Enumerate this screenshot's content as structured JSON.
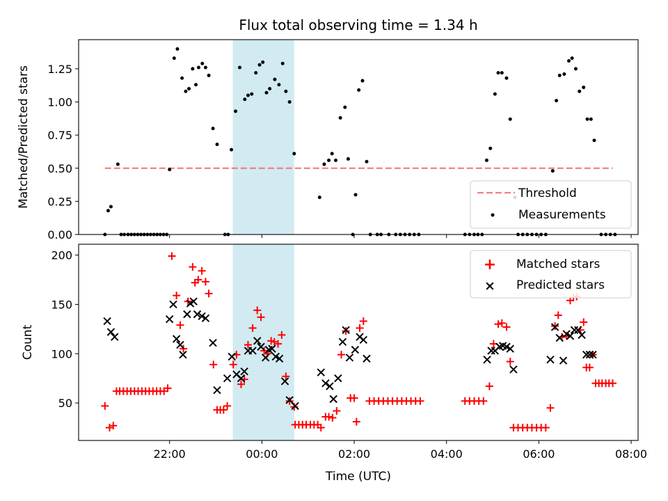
{
  "title": "Flux total observing time = 1.34 h",
  "colors": {
    "threshold": "#f08080",
    "measurement": "#000000",
    "matched": "#ff0000",
    "predicted": "#000000",
    "highlight": "#add8e6"
  },
  "chart_data": [
    {
      "type": "scatter",
      "ylabel": "Matched/Predicted stars",
      "ylim": [
        0,
        1.47
      ],
      "yticks": [
        "0.00",
        "0.25",
        "0.50",
        "0.75",
        "1.00",
        "1.25"
      ],
      "xlim_hours": [
        -2.95,
        8.15
      ],
      "grid": false,
      "legend_placement": "lower-right",
      "legend": [
        "Threshold",
        "Measurements"
      ],
      "threshold": {
        "name": "Threshold",
        "value": 0.5,
        "x_range_hours": [
          -2.4,
          7.6
        ]
      },
      "highlight_span_hours": [
        -0.63,
        0.7
      ],
      "series": [
        {
          "name": "Measurements",
          "points": [
            [
              -2.4,
              0
            ],
            [
              -2.33,
              0.18
            ],
            [
              -2.27,
              0.21
            ],
            [
              -2.17,
              0.53
            ],
            [
              -2.05,
              0
            ],
            [
              -1.98,
              0
            ],
            [
              -1.9,
              0
            ],
            [
              -1.82,
              0
            ],
            [
              -1.75,
              0
            ],
            [
              -1.68,
              0
            ],
            [
              -1.6,
              0
            ],
            [
              -1.52,
              0
            ],
            [
              -1.45,
              0
            ],
            [
              -1.38,
              0
            ],
            [
              -1.3,
              0
            ],
            [
              -1.22,
              0
            ],
            [
              -1.15,
              0
            ],
            [
              -1.08,
              0
            ],
            [
              -1.0,
              0
            ],
            [
              -0.95,
              0
            ],
            [
              -0.88,
              0
            ],
            [
              -0.8,
              0
            ],
            [
              -0.73,
              0
            ],
            [
              -0.65,
              0
            ],
            [
              -0.5,
              0
            ],
            [
              -0.45,
              0
            ],
            [
              -0.4,
              0
            ],
            [
              -2.1,
              0
            ],
            [
              -0.04,
              0.49
            ],
            [
              0.05,
              1.33
            ],
            [
              0.12,
              1.4
            ],
            [
              0.2,
              1.18
            ],
            [
              0.28,
              1.08
            ],
            [
              0.35,
              1.1
            ],
            [
              0.44,
              1.25
            ],
            [
              0.5,
              1.13
            ],
            [
              0.58,
              1.26
            ],
            [
              0.65,
              1.29
            ],
            [
              0.73,
              1.26
            ],
            [
              0.8,
              1.2
            ],
            [
              0.88,
              0.8
            ],
            [
              0.96,
              0.68
            ],
            [
              1.05,
              0
            ],
            [
              1.1,
              0
            ],
            [
              1.2,
              0.64
            ],
            [
              1.29,
              0.93
            ],
            [
              1.36,
              1.26
            ],
            [
              1.44,
              1.02
            ],
            [
              1.51,
              1.05
            ],
            [
              1.59,
              1.06
            ],
            [
              1.67,
              1.22
            ],
            [
              1.75,
              1.28
            ],
            [
              1.82,
              1.3
            ],
            [
              1.9,
              1.07
            ],
            [
              1.97,
              1.1
            ],
            [
              2.05,
              1.17
            ],
            [
              2.12,
              1.13
            ],
            [
              2.19,
              1.29
            ],
            [
              2.27,
              1.08
            ],
            [
              2.34,
              1.0
            ],
            [
              2.42,
              0.61
            ]
          ],
          "note_hours": "offsets from 22:00 local-axis origin are not used; see x_times"
        }
      ]
    },
    {
      "type": "scatter",
      "ylabel": "Count",
      "xlabel": "Time (UTC)",
      "ylim": [
        12,
        211
      ],
      "yticks": [
        "50",
        "100",
        "150",
        "200"
      ],
      "xticks": [
        "22:00",
        "00:00",
        "02:00",
        "04:00",
        "06:00",
        "08:00"
      ],
      "xlim_hours": [
        -2.95,
        8.15
      ],
      "grid": false,
      "legend_placement": "top-right",
      "legend": [
        "Matched stars",
        "Predicted stars"
      ],
      "highlight_span_hours": [
        -0.63,
        0.7
      ]
    }
  ],
  "measurements": [
    [
      -3.4,
      0
    ],
    [
      -3.33,
      0.18
    ],
    [
      -3.27,
      0.21
    ],
    [
      -3.12,
      0.53
    ],
    [
      -3.05,
      0
    ],
    [
      -2.98,
      0
    ],
    [
      -2.9,
      0
    ],
    [
      -2.83,
      0
    ],
    [
      -2.76,
      0
    ],
    [
      -2.69,
      0
    ],
    [
      -2.62,
      0
    ],
    [
      -2.55,
      0
    ],
    [
      -2.48,
      0
    ],
    [
      -2.41,
      0
    ],
    [
      -2.34,
      0
    ],
    [
      -2.27,
      0
    ],
    [
      -2.2,
      0
    ],
    [
      -2.13,
      0
    ],
    [
      -2.06,
      0
    ],
    [
      -2.0,
      0.49
    ],
    [
      -1.9,
      1.33
    ],
    [
      -1.83,
      1.4
    ],
    [
      -1.73,
      1.18
    ],
    [
      -1.65,
      1.08
    ],
    [
      -1.58,
      1.1
    ],
    [
      -1.5,
      1.25
    ],
    [
      -1.43,
      1.13
    ],
    [
      -1.37,
      1.26
    ],
    [
      -1.29,
      1.29
    ],
    [
      -1.22,
      1.26
    ],
    [
      -1.15,
      1.2
    ],
    [
      -1.06,
      0.8
    ],
    [
      -0.97,
      0.68
    ],
    [
      -0.8,
      0
    ],
    [
      -0.73,
      0
    ],
    [
      -0.66,
      0.64
    ],
    [
      -0.57,
      0.93
    ],
    [
      -0.48,
      1.26
    ],
    [
      -0.37,
      1.02
    ],
    [
      -0.3,
      1.05
    ],
    [
      -0.22,
      1.06
    ],
    [
      -0.13,
      1.22
    ],
    [
      -0.05,
      1.28
    ],
    [
      0.02,
      1.3
    ],
    [
      0.1,
      1.07
    ],
    [
      0.17,
      1.1
    ],
    [
      0.28,
      1.17
    ],
    [
      0.37,
      1.13
    ],
    [
      0.45,
      1.29
    ],
    [
      0.52,
      1.08
    ],
    [
      0.6,
      1.0
    ],
    [
      0.7,
      0.61
    ],
    [
      1.25,
      0.28
    ],
    [
      1.35,
      0.53
    ],
    [
      1.45,
      0.56
    ],
    [
      1.52,
      0.61
    ],
    [
      1.6,
      0.56
    ],
    [
      1.7,
      0.88
    ],
    [
      1.8,
      0.96
    ],
    [
      1.87,
      0.57
    ],
    [
      1.97,
      0
    ],
    [
      2.03,
      0.3
    ],
    [
      2.1,
      1.09
    ],
    [
      2.18,
      1.16
    ],
    [
      2.27,
      0.55
    ],
    [
      2.35,
      0
    ],
    [
      2.5,
      0
    ],
    [
      2.58,
      0
    ],
    [
      2.75,
      0
    ],
    [
      2.9,
      0
    ],
    [
      3.0,
      0
    ],
    [
      3.1,
      0
    ],
    [
      3.2,
      0
    ],
    [
      3.3,
      0
    ],
    [
      3.4,
      0
    ],
    [
      4.4,
      0
    ],
    [
      4.5,
      0
    ],
    [
      4.6,
      0
    ],
    [
      4.68,
      0
    ],
    [
      4.77,
      0
    ],
    [
      4.87,
      0.56
    ],
    [
      4.95,
      0.65
    ],
    [
      5.05,
      1.06
    ],
    [
      5.12,
      1.22
    ],
    [
      5.2,
      1.22
    ],
    [
      5.3,
      1.18
    ],
    [
      5.38,
      0.87
    ],
    [
      5.48,
      0.28
    ],
    [
      5.55,
      0
    ],
    [
      5.65,
      0
    ],
    [
      5.75,
      0
    ],
    [
      5.85,
      0
    ],
    [
      5.95,
      0
    ],
    [
      6.05,
      0
    ],
    [
      6.15,
      0
    ],
    [
      6.3,
      0.48
    ],
    [
      6.38,
      1.01
    ],
    [
      6.45,
      1.2
    ],
    [
      6.55,
      1.21
    ],
    [
      6.65,
      1.31
    ],
    [
      6.72,
      1.33
    ],
    [
      6.8,
      1.25
    ],
    [
      6.88,
      1.08
    ],
    [
      6.97,
      1.11
    ],
    [
      7.05,
      0.87
    ],
    [
      7.13,
      0.87
    ],
    [
      7.2,
      0.71
    ],
    [
      7.35,
      0
    ],
    [
      7.45,
      0
    ],
    [
      7.55,
      0
    ],
    [
      7.65,
      0
    ]
  ],
  "matched": [
    [
      -3.4,
      47
    ],
    [
      -3.3,
      25
    ],
    [
      -3.22,
      27
    ],
    [
      -3.15,
      62
    ],
    [
      -3.08,
      62
    ],
    [
      -3.0,
      62
    ],
    [
      -2.92,
      62
    ],
    [
      -2.84,
      62
    ],
    [
      -2.76,
      62
    ],
    [
      -2.68,
      62
    ],
    [
      -2.6,
      62
    ],
    [
      -2.52,
      62
    ],
    [
      -2.44,
      62
    ],
    [
      -2.36,
      62
    ],
    [
      -2.28,
      62
    ],
    [
      -2.2,
      62
    ],
    [
      -2.12,
      62
    ],
    [
      -2.04,
      65
    ],
    [
      -1.95,
      199
    ],
    [
      -1.85,
      159
    ],
    [
      -1.77,
      129
    ],
    [
      -1.7,
      105
    ],
    [
      -1.6,
      153
    ],
    [
      -1.5,
      188
    ],
    [
      -1.45,
      172
    ],
    [
      -1.38,
      175
    ],
    [
      -1.3,
      184
    ],
    [
      -1.22,
      173
    ],
    [
      -1.15,
      161
    ],
    [
      -1.05,
      89
    ],
    [
      -0.97,
      43
    ],
    [
      -0.9,
      43
    ],
    [
      -0.83,
      43
    ],
    [
      -0.75,
      47
    ],
    [
      -0.62,
      89
    ],
    [
      -0.55,
      99
    ],
    [
      -0.45,
      69
    ],
    [
      -0.38,
      74
    ],
    [
      -0.3,
      109
    ],
    [
      -0.2,
      126
    ],
    [
      -0.1,
      144
    ],
    [
      -0.02,
      137
    ],
    [
      0.05,
      103
    ],
    [
      0.12,
      100
    ],
    [
      0.2,
      113
    ],
    [
      0.27,
      112
    ],
    [
      0.35,
      110
    ],
    [
      0.43,
      119
    ],
    [
      0.52,
      77
    ],
    [
      0.6,
      52
    ],
    [
      0.7,
      46
    ],
    [
      0.72,
      28
    ],
    [
      0.8,
      28
    ],
    [
      0.88,
      28
    ],
    [
      0.96,
      28
    ],
    [
      1.05,
      28
    ],
    [
      1.13,
      28
    ],
    [
      1.21,
      28
    ],
    [
      1.28,
      25
    ],
    [
      1.38,
      36
    ],
    [
      1.45,
      36
    ],
    [
      1.53,
      35
    ],
    [
      1.62,
      42
    ],
    [
      1.72,
      99
    ],
    [
      1.82,
      123
    ],
    [
      1.92,
      55
    ],
    [
      2.0,
      55
    ],
    [
      2.05,
      31
    ],
    [
      2.12,
      126
    ],
    [
      2.2,
      133
    ],
    [
      2.33,
      52
    ],
    [
      2.43,
      52
    ],
    [
      2.53,
      52
    ],
    [
      2.63,
      52
    ],
    [
      2.73,
      52
    ],
    [
      2.83,
      52
    ],
    [
      2.93,
      52
    ],
    [
      3.03,
      52
    ],
    [
      3.13,
      52
    ],
    [
      3.23,
      52
    ],
    [
      3.33,
      52
    ],
    [
      3.43,
      52
    ],
    [
      4.4,
      52
    ],
    [
      4.5,
      52
    ],
    [
      4.6,
      52
    ],
    [
      4.7,
      52
    ],
    [
      4.8,
      52
    ],
    [
      4.93,
      67
    ],
    [
      5.02,
      110
    ],
    [
      5.12,
      130
    ],
    [
      5.2,
      131
    ],
    [
      5.3,
      127
    ],
    [
      5.38,
      92
    ],
    [
      5.45,
      25
    ],
    [
      5.55,
      25
    ],
    [
      5.65,
      25
    ],
    [
      5.75,
      25
    ],
    [
      5.85,
      25
    ],
    [
      5.95,
      25
    ],
    [
      6.05,
      25
    ],
    [
      6.15,
      25
    ],
    [
      6.25,
      45
    ],
    [
      6.35,
      128
    ],
    [
      6.42,
      139
    ],
    [
      6.5,
      117
    ],
    [
      6.6,
      118
    ],
    [
      6.68,
      154
    ],
    [
      6.75,
      157
    ],
    [
      6.82,
      158
    ],
    [
      6.9,
      124
    ],
    [
      6.97,
      132
    ],
    [
      7.03,
      86
    ],
    [
      7.1,
      86
    ],
    [
      7.17,
      99
    ],
    [
      7.23,
      70
    ],
    [
      7.3,
      70
    ],
    [
      7.37,
      70
    ],
    [
      7.45,
      70
    ],
    [
      7.52,
      70
    ],
    [
      7.6,
      70
    ]
  ],
  "predicted": [
    [
      -3.35,
      133
    ],
    [
      -3.27,
      122
    ],
    [
      -3.19,
      117
    ],
    [
      -2.0,
      135
    ],
    [
      -1.92,
      150
    ],
    [
      -1.85,
      115
    ],
    [
      -1.77,
      109
    ],
    [
      -1.71,
      99
    ],
    [
      -1.62,
      140
    ],
    [
      -1.55,
      151
    ],
    [
      -1.48,
      153
    ],
    [
      -1.4,
      140
    ],
    [
      -1.3,
      138
    ],
    [
      -1.22,
      136
    ],
    [
      -1.06,
      111
    ],
    [
      -0.97,
      63
    ],
    [
      -0.75,
      75
    ],
    [
      -0.65,
      97
    ],
    [
      -0.55,
      79
    ],
    [
      -0.45,
      75
    ],
    [
      -0.38,
      82
    ],
    [
      -0.3,
      103
    ],
    [
      -0.2,
      103
    ],
    [
      -0.1,
      113
    ],
    [
      -0.02,
      107
    ],
    [
      0.08,
      96
    ],
    [
      0.15,
      104
    ],
    [
      0.22,
      105
    ],
    [
      0.3,
      97
    ],
    [
      0.38,
      95
    ],
    [
      0.5,
      72
    ],
    [
      0.6,
      53
    ],
    [
      0.72,
      47
    ],
    [
      1.28,
      81
    ],
    [
      1.38,
      70
    ],
    [
      1.47,
      67
    ],
    [
      1.55,
      54
    ],
    [
      1.65,
      75
    ],
    [
      1.75,
      112
    ],
    [
      1.82,
      124
    ],
    [
      1.9,
      96
    ],
    [
      2.02,
      104
    ],
    [
      2.12,
      117
    ],
    [
      2.2,
      114
    ],
    [
      2.27,
      95
    ],
    [
      4.88,
      94
    ],
    [
      4.97,
      103
    ],
    [
      5.05,
      103
    ],
    [
      5.15,
      107
    ],
    [
      5.22,
      108
    ],
    [
      5.3,
      107
    ],
    [
      5.38,
      105
    ],
    [
      5.45,
      84
    ],
    [
      6.25,
      94
    ],
    [
      6.35,
      127
    ],
    [
      6.45,
      116
    ],
    [
      6.53,
      93
    ],
    [
      6.6,
      120
    ],
    [
      6.68,
      118
    ],
    [
      6.77,
      124
    ],
    [
      6.85,
      124
    ],
    [
      6.93,
      119
    ],
    [
      7.03,
      99
    ],
    [
      7.1,
      99
    ],
    [
      7.17,
      99
    ]
  ]
}
